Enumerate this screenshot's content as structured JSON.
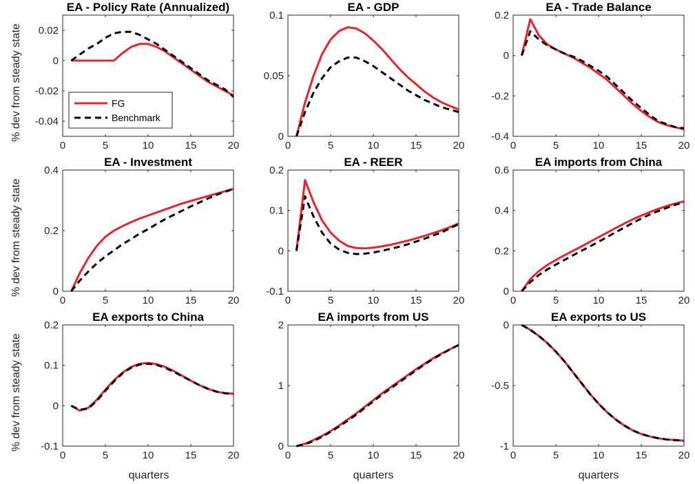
{
  "figure": {
    "ylabel": "% dev from steady state",
    "xlabel": "quarters"
  },
  "legend": {
    "entries": [
      {
        "name": "FG",
        "color": "#e8242a",
        "style": "solid"
      },
      {
        "name": "Benchmark",
        "color": "#000000",
        "style": "dashed"
      }
    ]
  },
  "chart_data": [
    {
      "type": "line",
      "title": "EA - Policy Rate (Annualized)",
      "xlim": [
        0,
        20
      ],
      "ylim": [
        -0.05,
        0.03
      ],
      "xticks": [
        0,
        5,
        10,
        15,
        20
      ],
      "yticks": [
        -0.04,
        -0.02,
        0,
        0.02
      ],
      "ytick_labels": [
        "-0.04",
        "-0.02",
        "0",
        "0.02"
      ],
      "x": [
        1,
        2,
        3,
        4,
        5,
        6,
        7,
        8,
        9,
        10,
        11,
        12,
        13,
        14,
        15,
        16,
        17,
        18,
        19,
        20
      ],
      "series": [
        {
          "name": "FG",
          "values": [
            0,
            0,
            0,
            0,
            0,
            0,
            0.005,
            0.009,
            0.011,
            0.011,
            0.009,
            0.006,
            0.002,
            -0.002,
            -0.006,
            -0.01,
            -0.014,
            -0.017,
            -0.02,
            -0.023
          ]
        },
        {
          "name": "Benchmark",
          "values": [
            0,
            0.004,
            0.008,
            0.011,
            0.015,
            0.018,
            0.019,
            0.019,
            0.017,
            0.014,
            0.011,
            0.007,
            0.003,
            -0.001,
            -0.005,
            -0.009,
            -0.013,
            -0.016,
            -0.019,
            -0.024
          ]
        }
      ]
    },
    {
      "type": "line",
      "title": "EA - GDP",
      "xlim": [
        0,
        20
      ],
      "ylim": [
        0,
        0.1
      ],
      "xticks": [
        0,
        5,
        10,
        15,
        20
      ],
      "yticks": [
        0,
        0.05,
        0.1
      ],
      "ytick_labels": [
        "0",
        "0.05",
        "0.1"
      ],
      "x": [
        1,
        2,
        3,
        4,
        5,
        6,
        7,
        8,
        9,
        10,
        11,
        12,
        13,
        14,
        15,
        16,
        17,
        18,
        19,
        20
      ],
      "series": [
        {
          "name": "FG",
          "values": [
            0,
            0.028,
            0.05,
            0.068,
            0.08,
            0.087,
            0.09,
            0.089,
            0.085,
            0.079,
            0.072,
            0.064,
            0.056,
            0.049,
            0.043,
            0.037,
            0.032,
            0.028,
            0.025,
            0.022
          ]
        },
        {
          "name": "Benchmark",
          "values": [
            0,
            0.02,
            0.036,
            0.048,
            0.057,
            0.062,
            0.065,
            0.065,
            0.062,
            0.058,
            0.053,
            0.048,
            0.043,
            0.038,
            0.034,
            0.03,
            0.027,
            0.024,
            0.022,
            0.02
          ]
        }
      ]
    },
    {
      "type": "line",
      "title": "EA - Trade Balance",
      "xlim": [
        0,
        20
      ],
      "ylim": [
        -0.4,
        0.2
      ],
      "xticks": [
        0,
        5,
        10,
        15,
        20
      ],
      "yticks": [
        -0.4,
        -0.2,
        0,
        0.2
      ],
      "ytick_labels": [
        "-0.4",
        "-0.2",
        "0",
        "0.2"
      ],
      "x": [
        1,
        2,
        3,
        4,
        5,
        6,
        7,
        8,
        9,
        10,
        11,
        12,
        13,
        14,
        15,
        16,
        17,
        18,
        19,
        20
      ],
      "series": [
        {
          "name": "FG",
          "values": [
            0,
            0.18,
            0.1,
            0.055,
            0.03,
            0.01,
            -0.01,
            -0.035,
            -0.06,
            -0.09,
            -0.12,
            -0.16,
            -0.2,
            -0.24,
            -0.275,
            -0.305,
            -0.33,
            -0.345,
            -0.355,
            -0.365
          ]
        },
        {
          "name": "Benchmark",
          "values": [
            0,
            0.12,
            0.08,
            0.05,
            0.03,
            0.01,
            -0.005,
            -0.025,
            -0.05,
            -0.075,
            -0.105,
            -0.145,
            -0.185,
            -0.225,
            -0.26,
            -0.295,
            -0.325,
            -0.34,
            -0.355,
            -0.36
          ]
        }
      ]
    },
    {
      "type": "line",
      "title": "EA - Investment",
      "xlim": [
        0,
        20
      ],
      "ylim": [
        0,
        0.4
      ],
      "xticks": [
        0,
        5,
        10,
        15,
        20
      ],
      "yticks": [
        0,
        0.2,
        0.4
      ],
      "ytick_labels": [
        "0",
        "0.2",
        "0.4"
      ],
      "x": [
        1,
        2,
        3,
        4,
        5,
        6,
        7,
        8,
        9,
        10,
        11,
        12,
        13,
        14,
        15,
        16,
        17,
        18,
        19,
        20
      ],
      "series": [
        {
          "name": "FG",
          "values": [
            0,
            0.06,
            0.11,
            0.15,
            0.18,
            0.2,
            0.215,
            0.228,
            0.24,
            0.25,
            0.26,
            0.27,
            0.28,
            0.29,
            0.298,
            0.306,
            0.314,
            0.322,
            0.33,
            0.338
          ]
        },
        {
          "name": "Benchmark",
          "values": [
            0,
            0.035,
            0.065,
            0.092,
            0.115,
            0.135,
            0.155,
            0.172,
            0.19,
            0.205,
            0.222,
            0.238,
            0.252,
            0.266,
            0.28,
            0.293,
            0.306,
            0.318,
            0.328,
            0.338
          ]
        }
      ]
    },
    {
      "type": "line",
      "title": "EA - REER",
      "xlim": [
        0,
        20
      ],
      "ylim": [
        -0.1,
        0.2
      ],
      "xticks": [
        0,
        5,
        10,
        15,
        20
      ],
      "yticks": [
        -0.1,
        0,
        0.1,
        0.2
      ],
      "ytick_labels": [
        "-0.1",
        "0",
        "0.1",
        "0.2"
      ],
      "x": [
        1,
        2,
        3,
        4,
        5,
        6,
        7,
        8,
        9,
        10,
        11,
        12,
        13,
        14,
        15,
        16,
        17,
        18,
        19,
        20
      ],
      "series": [
        {
          "name": "FG",
          "values": [
            0,
            0.175,
            0.12,
            0.075,
            0.045,
            0.025,
            0.012,
            0.007,
            0.006,
            0.008,
            0.011,
            0.015,
            0.02,
            0.025,
            0.031,
            0.037,
            0.044,
            0.051,
            0.059,
            0.068
          ]
        },
        {
          "name": "Benchmark",
          "values": [
            0,
            0.135,
            0.085,
            0.045,
            0.018,
            0.003,
            -0.005,
            -0.008,
            -0.007,
            -0.004,
            0,
            0.005,
            0.01,
            0.016,
            0.023,
            0.03,
            0.038,
            0.046,
            0.056,
            0.066
          ]
        }
      ]
    },
    {
      "type": "line",
      "title": "EA imports from China",
      "xlim": [
        0,
        20
      ],
      "ylim": [
        0,
        0.6
      ],
      "xticks": [
        0,
        5,
        10,
        15,
        20
      ],
      "yticks": [
        0,
        0.2,
        0.4,
        0.6
      ],
      "ytick_labels": [
        "0",
        "0.2",
        "0.4",
        "0.6"
      ],
      "x": [
        1,
        2,
        3,
        4,
        5,
        6,
        7,
        8,
        9,
        10,
        11,
        12,
        13,
        14,
        15,
        16,
        17,
        18,
        19,
        20
      ],
      "series": [
        {
          "name": "FG",
          "values": [
            0,
            0.06,
            0.1,
            0.13,
            0.155,
            0.178,
            0.2,
            0.222,
            0.245,
            0.268,
            0.29,
            0.313,
            0.335,
            0.356,
            0.375,
            0.392,
            0.408,
            0.422,
            0.435,
            0.445
          ]
        },
        {
          "name": "Benchmark",
          "values": [
            0,
            0.045,
            0.08,
            0.108,
            0.132,
            0.155,
            0.178,
            0.2,
            0.222,
            0.245,
            0.268,
            0.292,
            0.315,
            0.338,
            0.36,
            0.38,
            0.397,
            0.413,
            0.428,
            0.44
          ]
        }
      ]
    },
    {
      "type": "line",
      "title": "EA exports to China",
      "xlim": [
        0,
        20
      ],
      "ylim": [
        -0.1,
        0.2
      ],
      "xticks": [
        0,
        5,
        10,
        15,
        20
      ],
      "yticks": [
        -0.1,
        0,
        0.1,
        0.2
      ],
      "ytick_labels": [
        "-0.1",
        "0",
        "0.1",
        "0.2"
      ],
      "x": [
        1,
        2,
        3,
        4,
        5,
        6,
        7,
        8,
        9,
        10,
        11,
        12,
        13,
        14,
        15,
        16,
        17,
        18,
        19,
        20
      ],
      "series": [
        {
          "name": "FG",
          "values": [
            0,
            -0.012,
            -0.005,
            0.015,
            0.04,
            0.063,
            0.082,
            0.096,
            0.104,
            0.106,
            0.103,
            0.096,
            0.086,
            0.074,
            0.062,
            0.051,
            0.042,
            0.035,
            0.031,
            0.03
          ]
        },
        {
          "name": "Benchmark",
          "values": [
            0,
            -0.01,
            -0.007,
            0.012,
            0.037,
            0.06,
            0.08,
            0.094,
            0.102,
            0.104,
            0.101,
            0.094,
            0.084,
            0.073,
            0.062,
            0.051,
            0.042,
            0.035,
            0.031,
            0.029
          ]
        }
      ]
    },
    {
      "type": "line",
      "title": "EA imports from US",
      "xlim": [
        0,
        20
      ],
      "ylim": [
        0,
        2
      ],
      "xticks": [
        0,
        5,
        10,
        15,
        20
      ],
      "yticks": [
        0,
        1,
        2
      ],
      "ytick_labels": [
        "0",
        "1",
        "2"
      ],
      "x": [
        1,
        2,
        3,
        4,
        5,
        6,
        7,
        8,
        9,
        10,
        11,
        12,
        13,
        14,
        15,
        16,
        17,
        18,
        19,
        20
      ],
      "series": [
        {
          "name": "FG",
          "values": [
            0,
            0.04,
            0.1,
            0.17,
            0.25,
            0.34,
            0.44,
            0.54,
            0.65,
            0.76,
            0.87,
            0.97,
            1.07,
            1.17,
            1.27,
            1.36,
            1.45,
            1.53,
            1.6,
            1.67
          ]
        },
        {
          "name": "Benchmark",
          "values": [
            0,
            0.03,
            0.085,
            0.155,
            0.235,
            0.325,
            0.42,
            0.52,
            0.63,
            0.74,
            0.85,
            0.95,
            1.05,
            1.15,
            1.25,
            1.35,
            1.44,
            1.52,
            1.6,
            1.67
          ]
        }
      ]
    },
    {
      "type": "line",
      "title": "EA exports to US",
      "xlim": [
        0,
        20
      ],
      "ylim": [
        -1,
        0
      ],
      "xticks": [
        0,
        5,
        10,
        15,
        20
      ],
      "yticks": [
        -1,
        -0.5,
        0
      ],
      "ytick_labels": [
        "-1",
        "-0.5",
        "0"
      ],
      "x": [
        1,
        2,
        3,
        4,
        5,
        6,
        7,
        8,
        9,
        10,
        11,
        12,
        13,
        14,
        15,
        16,
        17,
        18,
        19,
        20
      ],
      "series": [
        {
          "name": "FG",
          "values": [
            0,
            -0.04,
            -0.09,
            -0.15,
            -0.22,
            -0.3,
            -0.39,
            -0.48,
            -0.57,
            -0.65,
            -0.72,
            -0.78,
            -0.83,
            -0.87,
            -0.9,
            -0.92,
            -0.935,
            -0.945,
            -0.95,
            -0.955
          ]
        },
        {
          "name": "Benchmark",
          "values": [
            0,
            -0.04,
            -0.09,
            -0.15,
            -0.22,
            -0.3,
            -0.39,
            -0.48,
            -0.57,
            -0.65,
            -0.72,
            -0.78,
            -0.83,
            -0.87,
            -0.9,
            -0.92,
            -0.935,
            -0.945,
            -0.95,
            -0.955
          ]
        }
      ]
    }
  ]
}
